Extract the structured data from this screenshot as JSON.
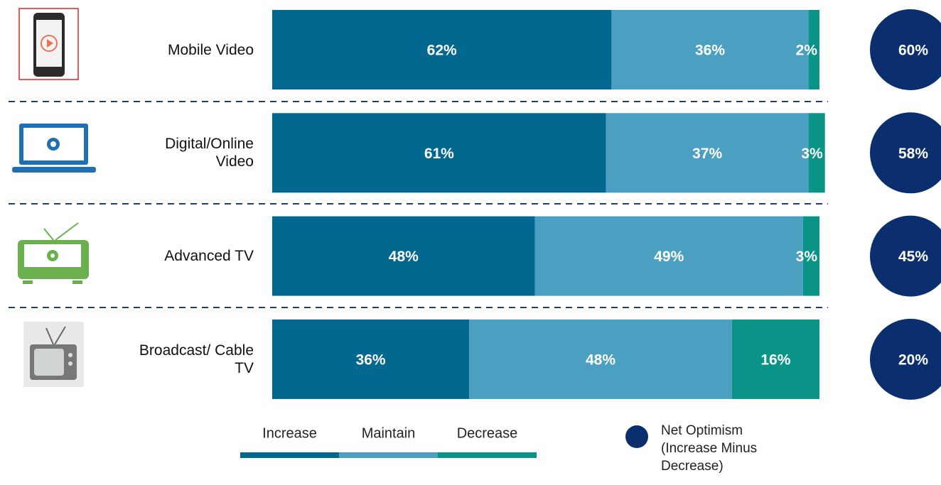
{
  "chart_data": {
    "type": "bar",
    "orientation": "horizontal",
    "stacked": true,
    "categories": [
      "Mobile Video",
      "Digital/Online Video",
      "Advanced TV",
      "Broadcast/ Cable TV"
    ],
    "xlim": [
      0,
      100
    ],
    "series": [
      {
        "name": "Increase",
        "color": "#03688f",
        "values": [
          62,
          61,
          48,
          36
        ],
        "value_labels": [
          "62%",
          "61%",
          "48%",
          "36%"
        ]
      },
      {
        "name": "Maintain",
        "color": "#4b9fc0",
        "values": [
          36,
          37,
          49,
          48
        ],
        "value_labels": [
          "36%",
          "37%",
          "49%",
          "48%"
        ]
      },
      {
        "name": "Decrease",
        "color": "#0a9488",
        "values": [
          2,
          3,
          3,
          16
        ],
        "value_labels": [
          "2%",
          "3%",
          "3%",
          "16%"
        ]
      }
    ],
    "net_optimism": {
      "name": "Net Optimism (Increase Minus Decrease)",
      "color": "#0b2f6e",
      "values": [
        60,
        58,
        45,
        20
      ],
      "value_labels": [
        "60%",
        "58%",
        "45%",
        "20%"
      ]
    }
  }
}
